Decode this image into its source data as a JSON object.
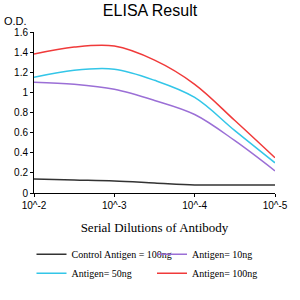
{
  "chart_data": {
    "type": "line",
    "title": "ELISA Result",
    "x_label": "Serial Dilutions of Antibody",
    "y_label": "O.D.",
    "x": [
      0.01,
      0.00316,
      0.001,
      0.000316,
      0.0001,
      3.16e-05,
      1e-05
    ],
    "series": [
      {
        "name": "Control Antigen = 100ng",
        "color": "#333333",
        "values": [
          0.14,
          0.13,
          0.12,
          0.1,
          0.08,
          0.08,
          0.08
        ]
      },
      {
        "name": "Antigen= 10ng",
        "color": "#9b6fd6",
        "values": [
          1.1,
          1.08,
          1.03,
          0.92,
          0.78,
          0.52,
          0.22
        ]
      },
      {
        "name": "Antigen= 50ng",
        "color": "#33c6e8",
        "values": [
          1.15,
          1.22,
          1.23,
          1.12,
          0.95,
          0.62,
          0.3
        ]
      },
      {
        "name": "Antigen= 100ng",
        "color": "#f03a3a",
        "values": [
          1.38,
          1.45,
          1.46,
          1.32,
          1.08,
          0.72,
          0.35
        ]
      }
    ],
    "log": "x",
    "xlim": [
      0.01,
      1e-05
    ],
    "xticks": [
      {
        "value": 0.01,
        "label": "10^-2"
      },
      {
        "value": 0.001,
        "label": "10^-3"
      },
      {
        "value": 0.0001,
        "label": "10^-4"
      },
      {
        "value": 1e-05,
        "label": "10^-5"
      }
    ],
    "ylim": [
      0,
      1.6
    ],
    "yticks": [
      {
        "value": 0,
        "label": "0"
      },
      {
        "value": 0.2,
        "label": "0.2"
      },
      {
        "value": 0.4,
        "label": "0.4"
      },
      {
        "value": 0.6,
        "label": "0.6"
      },
      {
        "value": 0.8,
        "label": "0.8"
      },
      {
        "value": 1.0,
        "label": "1"
      },
      {
        "value": 1.2,
        "label": "1.2"
      },
      {
        "value": 1.4,
        "label": "1.4"
      },
      {
        "value": 1.6,
        "label": "1.6"
      }
    ],
    "grid": false,
    "legend": "bottom"
  }
}
